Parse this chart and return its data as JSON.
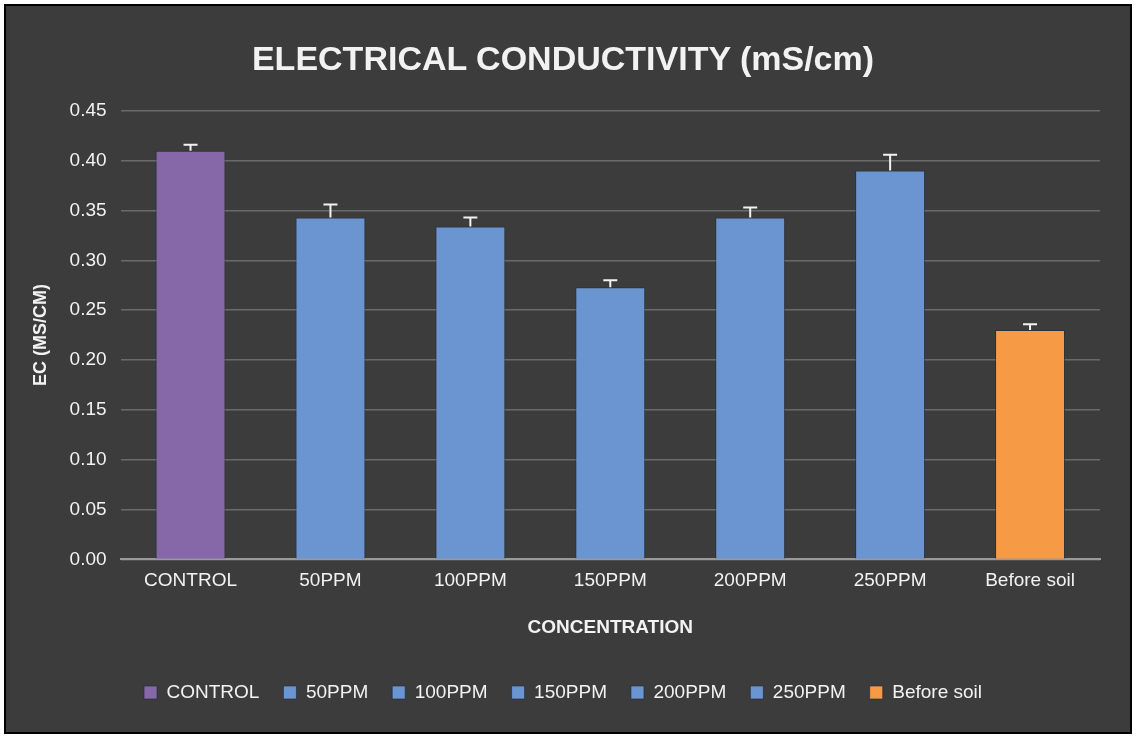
{
  "chart_data": {
    "type": "bar",
    "title": "ELECTRICAL CONDUCTIVITY (mS/cm)",
    "xlabel": "CONCENTRATION",
    "ylabel": "EC (MS/CM)",
    "categories": [
      "CONTROL",
      "50PPM",
      "100PPM",
      "150PPM",
      "200PPM",
      "250PPM",
      "Before soil"
    ],
    "series": [
      {
        "name": "CONTROL",
        "color": "#8667a8",
        "values": [
          0.41,
          null,
          null,
          null,
          null,
          null,
          null
        ],
        "errors": [
          [
            0.41,
            0.416
          ],
          null,
          null,
          null,
          null,
          null,
          null
        ]
      },
      {
        "name": "50PPM",
        "color": "#6a95d0",
        "values": [
          null,
          0.343,
          null,
          null,
          null,
          null,
          null
        ],
        "errors": [
          null,
          [
            0.343,
            0.356
          ],
          null,
          null,
          null,
          null,
          null
        ]
      },
      {
        "name": "100PPM",
        "color": "#6a95d0",
        "values": [
          null,
          null,
          0.334,
          null,
          null,
          null,
          null
        ],
        "errors": [
          null,
          null,
          [
            0.334,
            0.343
          ],
          null,
          null,
          null,
          null
        ]
      },
      {
        "name": "150PPM",
        "color": "#6a95d0",
        "values": [
          null,
          null,
          null,
          0.273,
          null,
          null,
          null
        ],
        "errors": [
          null,
          null,
          null,
          [
            0.273,
            0.28
          ],
          null,
          null,
          null
        ]
      },
      {
        "name": "200PPM",
        "color": "#6a95d0",
        "values": [
          null,
          null,
          null,
          null,
          0.343,
          null,
          null
        ],
        "errors": [
          null,
          null,
          null,
          null,
          [
            0.343,
            0.353
          ],
          null,
          null
        ]
      },
      {
        "name": "250PPM",
        "color": "#6a95d0",
        "values": [
          null,
          null,
          null,
          null,
          null,
          0.39,
          null
        ],
        "errors": [
          null,
          null,
          null,
          null,
          null,
          [
            0.39,
            0.406
          ],
          null
        ]
      },
      {
        "name": "Before soil",
        "color": "#f79a45",
        "values": [
          null,
          null,
          null,
          null,
          null,
          null,
          0.23
        ],
        "errors": [
          null,
          null,
          null,
          null,
          null,
          null,
          [
            0.23,
            0.236
          ]
        ]
      }
    ],
    "ylim": [
      0,
      0.45
    ],
    "yticks": [
      {
        "value": 0,
        "label": "0.00"
      },
      {
        "value": 0.05,
        "label": "0.05"
      },
      {
        "value": 0.1,
        "label": "0.10"
      },
      {
        "value": 0.15,
        "label": "0.15"
      },
      {
        "value": 0.2,
        "label": "0.20"
      },
      {
        "value": 0.25,
        "label": "0.25"
      },
      {
        "value": 0.3,
        "label": "0.30"
      },
      {
        "value": 0.35,
        "label": "0.35"
      },
      {
        "value": 0.4,
        "label": "0.40"
      },
      {
        "value": 0.45,
        "label": "0.45"
      }
    ],
    "grid": "y",
    "legend": "bottom"
  }
}
